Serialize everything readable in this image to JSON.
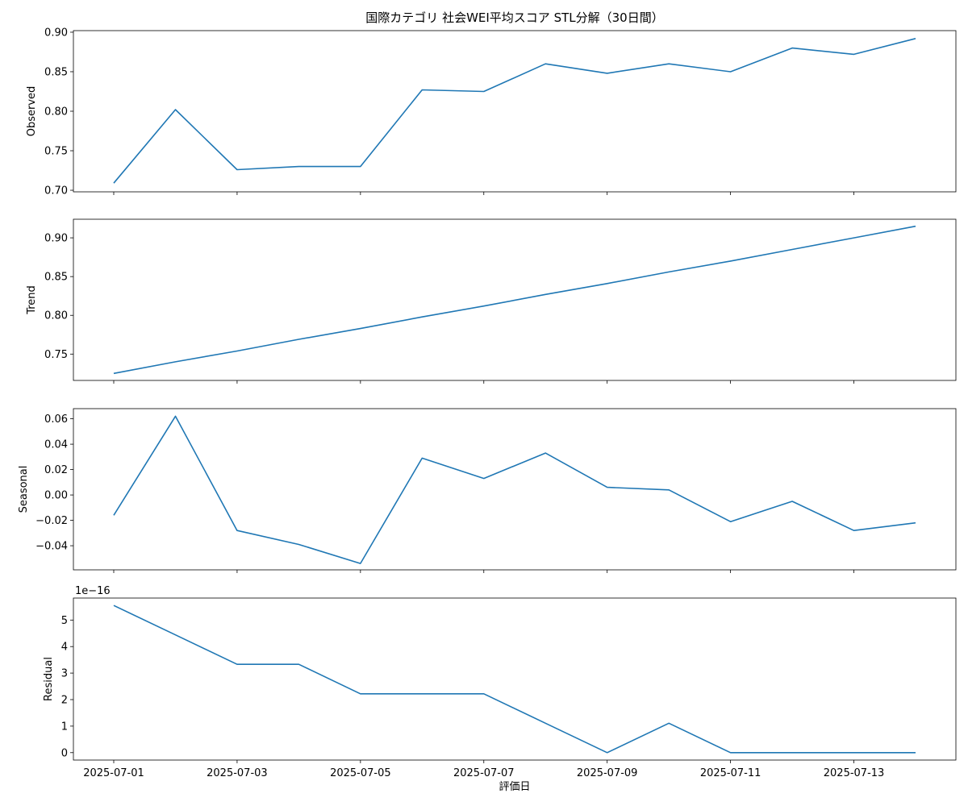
{
  "chart_data": {
    "type": "line",
    "title": "国際カテゴリ 社会WEI平均スコア STL分解（30日間）",
    "xlabel": "評価日",
    "x": [
      "2025-07-01",
      "2025-07-02",
      "2025-07-03",
      "2025-07-04",
      "2025-07-05",
      "2025-07-06",
      "2025-07-07",
      "2025-07-08",
      "2025-07-09",
      "2025-07-10",
      "2025-07-11",
      "2025-07-12",
      "2025-07-13",
      "2025-07-14"
    ],
    "x_tick_labels": [
      "2025-07-01",
      "2025-07-03",
      "2025-07-05",
      "2025-07-07",
      "2025-07-09",
      "2025-07-11",
      "2025-07-13"
    ],
    "line_color": "#1f77b4",
    "panels": [
      {
        "ylabel": "Observed",
        "ylim": [
          0.698,
          0.902
        ],
        "yticks": [
          0.7,
          0.75,
          0.8,
          0.85,
          0.9
        ],
        "ytick_labels": [
          "0.70",
          "0.75",
          "0.80",
          "0.85",
          "0.90"
        ],
        "values": [
          0.709,
          0.802,
          0.726,
          0.73,
          0.73,
          0.827,
          0.825,
          0.86,
          0.848,
          0.86,
          0.85,
          0.88,
          0.872,
          0.892
        ]
      },
      {
        "ylabel": "Trend",
        "ylim": [
          0.716,
          0.924
        ],
        "yticks": [
          0.75,
          0.8,
          0.85,
          0.9
        ],
        "ytick_labels": [
          "0.75",
          "0.80",
          "0.85",
          "0.90"
        ],
        "values": [
          0.725,
          0.74,
          0.754,
          0.769,
          0.783,
          0.798,
          0.812,
          0.827,
          0.841,
          0.856,
          0.87,
          0.885,
          0.9,
          0.915
        ]
      },
      {
        "ylabel": "Seasonal",
        "ylim": [
          -0.059,
          0.068
        ],
        "yticks": [
          -0.04,
          -0.02,
          0.0,
          0.02,
          0.04,
          0.06
        ],
        "ytick_labels": [
          "−0.04",
          "−0.02",
          "0.00",
          "0.02",
          "0.04",
          "0.06"
        ],
        "values": [
          -0.016,
          0.062,
          -0.028,
          -0.039,
          -0.054,
          0.029,
          0.013,
          0.033,
          0.006,
          0.004,
          -0.021,
          -0.005,
          -0.028,
          -0.022
        ]
      },
      {
        "ylabel": "Residual",
        "offset_text": "1e−16",
        "ylim": [
          -0.28,
          5.83
        ],
        "yticks": [
          0,
          1,
          2,
          3,
          4,
          5
        ],
        "ytick_labels": [
          "0",
          "1",
          "2",
          "3",
          "4",
          "5"
        ],
        "values": [
          5.55,
          4.44,
          3.33,
          3.33,
          2.22,
          2.22,
          2.22,
          1.11,
          0.0,
          1.11,
          0.0,
          0.0,
          0.0,
          0.0
        ]
      }
    ]
  }
}
